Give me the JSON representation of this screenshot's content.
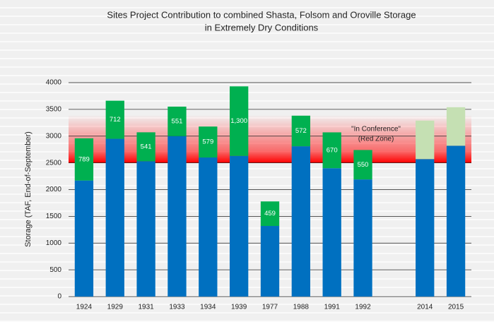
{
  "chart_data": {
    "type": "bar",
    "stacked": true,
    "title": "Sites Project Contribution to combined Shasta, Folsom and Oroville Storage",
    "subtitle": "in Extremely Dry Conditions",
    "y_label": "Storage (TAF, End-of-September)",
    "categories": [
      "1924",
      "1929",
      "1931",
      "1933",
      "1934",
      "1939",
      "1977",
      "1988",
      "1991",
      "1992",
      null,
      "2014",
      "2015"
    ],
    "series": [
      {
        "color": "#0070c0",
        "values": [
          2170,
          2950,
          2530,
          3000,
          2600,
          2630,
          1320,
          2810,
          2400,
          2190,
          null,
          2570,
          2820
        ]
      },
      {
        "color": "#00b050",
        "values": [
          789,
          712,
          541,
          551,
          579,
          1300,
          459,
          572,
          670,
          550,
          null,
          null,
          null
        ],
        "value_labels": [
          "789",
          "712",
          "541",
          "551",
          "579",
          "1,300",
          "459",
          "572",
          "670",
          "550",
          null,
          null,
          null
        ]
      },
      {
        "color": "#c5e0b3",
        "values": [
          null,
          null,
          null,
          null,
          null,
          null,
          null,
          null,
          null,
          null,
          null,
          720,
          720
        ]
      }
    ],
    "ylim": [
      0,
      4000
    ],
    "yticks": [
      0,
      500,
      1000,
      1500,
      2000,
      2500,
      3000,
      3500,
      4000
    ],
    "grid": true,
    "zone": {
      "range": [
        2500,
        3400
      ],
      "color": "#ff0000",
      "labels": [
        "\"In Conference\"",
        "(Red Zone)"
      ]
    }
  }
}
